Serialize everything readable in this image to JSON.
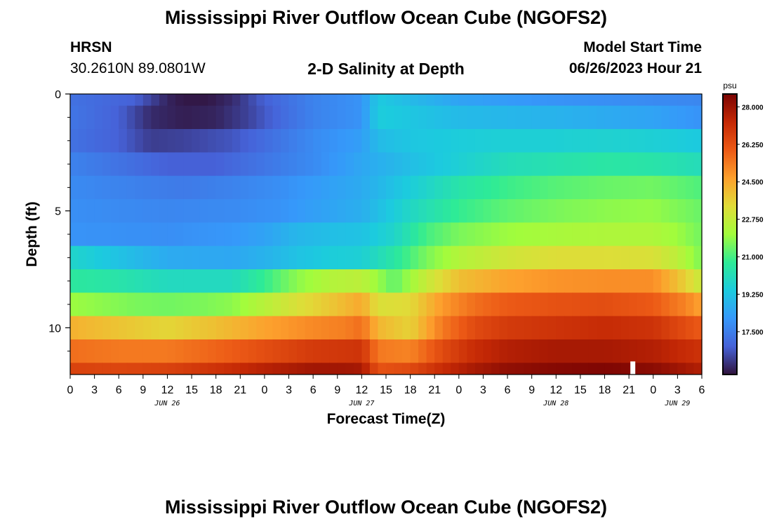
{
  "page": {
    "title": "Mississippi River Outflow Ocean Cube (NGOFS2)",
    "station": "HRSN",
    "coords": "30.2610N  89.0801W",
    "subtitle": "2-D Salinity at Depth",
    "model_start_label": "Model Start Time",
    "model_start_value": "06/26/2023 Hour 21",
    "footer_title": "Mississippi River Outflow Ocean Cube (NGOFS2)"
  },
  "chart_data": {
    "type": "heatmap",
    "title": "2-D Salinity at Depth",
    "xlabel": "Forecast Time(Z)",
    "ylabel": "Depth (ft)",
    "x_unit": "hours since Jun 26 00Z",
    "xlim": [
      0,
      78
    ],
    "ylim": [
      0,
      12
    ],
    "x_tick_values": [
      0,
      3,
      6,
      9,
      12,
      15,
      18,
      21,
      24,
      27,
      30,
      33,
      36,
      39,
      42,
      45,
      48,
      51,
      54,
      57,
      60,
      63,
      66,
      69,
      72,
      75,
      78
    ],
    "x_tick_labels": [
      "0",
      "3",
      "6",
      "9",
      "12",
      "15",
      "18",
      "21",
      "0",
      "3",
      "6",
      "9",
      "12",
      "15",
      "18",
      "21",
      "0",
      "3",
      "6",
      "9",
      "12",
      "15",
      "18",
      "21",
      "0",
      "3",
      "6"
    ],
    "day_labels": [
      {
        "text": "JUN 26",
        "x": 12
      },
      {
        "text": "JUN 27",
        "x": 36
      },
      {
        "text": "JUN 28",
        "x": 60
      },
      {
        "text": "JUN 29",
        "x": 75
      }
    ],
    "y_tick_values": [
      0,
      5,
      10
    ],
    "y_tick_labels": [
      "0",
      "5",
      "10"
    ],
    "y_minor_ticks": [
      1,
      2,
      3,
      4,
      6,
      7,
      8,
      9,
      11
    ],
    "current_time_marker_x": 69,
    "colorbar": {
      "unit": "psu",
      "min": 15.5,
      "max": 28.6,
      "ticks": [
        28.0,
        26.25,
        24.5,
        22.75,
        21.0,
        19.25,
        17.5
      ],
      "tick_labels": [
        "28.000",
        "26.250",
        "24.500",
        "22.750",
        "21.000",
        "19.250",
        "17.500"
      ]
    },
    "layers": [
      {
        "depth_top": 0,
        "depth_bottom": 0.5,
        "t": [
          0,
          8,
          12,
          14,
          17,
          20,
          24,
          30,
          36,
          38,
          42,
          48,
          60,
          72,
          78
        ],
        "v": [
          17.2,
          16.8,
          15.8,
          15.6,
          15.6,
          15.9,
          16.8,
          17.6,
          18.0,
          19.4,
          19.0,
          18.4,
          18.0,
          17.8,
          17.7
        ]
      },
      {
        "depth_top": 0.5,
        "depth_bottom": 1.5,
        "t": [
          0,
          6,
          10,
          14,
          18,
          22,
          26,
          30,
          36,
          38,
          42,
          48,
          60,
          72,
          78
        ],
        "v": [
          17.3,
          16.8,
          15.9,
          15.7,
          15.8,
          16.3,
          17.0,
          17.6,
          18.0,
          19.5,
          19.3,
          19.0,
          18.8,
          18.4,
          18.0
        ]
      },
      {
        "depth_top": 1.5,
        "depth_bottom": 2.5,
        "t": [
          0,
          6,
          10,
          14,
          20,
          26,
          30,
          36,
          38,
          42,
          48,
          54,
          60,
          66,
          72,
          78
        ],
        "v": [
          17.2,
          16.8,
          16.2,
          16.3,
          16.6,
          17.3,
          17.8,
          18.3,
          19.0,
          19.3,
          19.5,
          19.6,
          19.6,
          19.7,
          19.6,
          19.4
        ]
      },
      {
        "depth_top": 2.5,
        "depth_bottom": 3.5,
        "t": [
          0,
          8,
          12,
          18,
          24,
          30,
          36,
          42,
          48,
          54,
          60,
          66,
          72,
          78
        ],
        "v": [
          17.6,
          17.1,
          16.8,
          16.8,
          17.3,
          17.8,
          18.5,
          19.1,
          19.6,
          20.1,
          20.3,
          20.5,
          20.4,
          20.1
        ]
      },
      {
        "depth_top": 3.5,
        "depth_bottom": 4.5,
        "t": [
          0,
          10,
          14,
          20,
          26,
          30,
          36,
          42,
          48,
          54,
          60,
          66,
          72,
          78
        ],
        "v": [
          17.8,
          17.5,
          17.4,
          17.6,
          17.9,
          18.2,
          18.6,
          19.5,
          20.4,
          20.9,
          21.2,
          21.4,
          21.5,
          21.1
        ]
      },
      {
        "depth_top": 4.5,
        "depth_bottom": 5.5,
        "t": [
          0,
          12,
          20,
          26,
          30,
          36,
          42,
          48,
          54,
          60,
          66,
          72,
          78
        ],
        "v": [
          17.9,
          17.7,
          17.8,
          18.0,
          18.3,
          18.7,
          19.9,
          20.8,
          21.3,
          21.6,
          21.8,
          21.9,
          21.4
        ]
      },
      {
        "depth_top": 5.5,
        "depth_bottom": 6.5,
        "t": [
          0,
          12,
          20,
          24,
          28,
          32,
          36,
          40,
          44,
          48,
          54,
          60,
          66,
          72,
          75,
          78
        ],
        "v": [
          18.0,
          17.9,
          18.1,
          18.4,
          18.9,
          19.1,
          19.2,
          19.8,
          21.0,
          21.6,
          22.0,
          22.2,
          22.3,
          22.3,
          22.0,
          21.5
        ]
      },
      {
        "depth_top": 6.5,
        "depth_bottom": 7.5,
        "t": [
          0,
          12,
          20,
          24,
          28,
          32,
          36,
          40,
          44,
          48,
          54,
          60,
          66,
          72,
          75,
          78
        ],
        "v": [
          19.8,
          18.6,
          18.5,
          18.8,
          19.2,
          19.5,
          19.6,
          20.5,
          21.6,
          22.4,
          23.0,
          23.3,
          23.3,
          23.2,
          22.6,
          21.6
        ]
      },
      {
        "depth_top": 7.5,
        "depth_bottom": 8.5,
        "t": [
          0,
          6,
          12,
          20,
          24,
          28,
          32,
          36,
          40,
          44,
          48,
          54,
          60,
          66,
          72,
          75,
          78
        ],
        "v": [
          20.6,
          20.4,
          20.0,
          20.0,
          20.8,
          21.8,
          22.4,
          22.6,
          21.3,
          22.8,
          24.0,
          24.6,
          24.9,
          25.0,
          25.0,
          24.0,
          22.8
        ]
      },
      {
        "depth_top": 8.5,
        "depth_bottom": 9.5,
        "t": [
          0,
          8,
          12,
          16,
          20,
          24,
          28,
          32,
          36,
          38,
          42,
          46,
          50,
          54,
          60,
          66,
          72,
          76,
          78
        ],
        "v": [
          22.0,
          21.6,
          21.5,
          21.6,
          21.8,
          22.5,
          23.2,
          23.8,
          24.5,
          23.2,
          23.4,
          24.8,
          25.6,
          26.0,
          26.2,
          26.3,
          26.0,
          25.2,
          24.6
        ]
      },
      {
        "depth_top": 9.5,
        "depth_bottom": 10.5,
        "t": [
          0,
          6,
          12,
          18,
          24,
          30,
          34,
          36,
          38,
          42,
          46,
          50,
          54,
          60,
          66,
          72,
          78
        ],
        "v": [
          24.3,
          23.9,
          23.5,
          24.0,
          24.6,
          25.1,
          25.3,
          25.6,
          24.2,
          23.6,
          25.4,
          26.4,
          26.8,
          27.0,
          27.2,
          27.0,
          26.0
        ]
      },
      {
        "depth_top": 10.5,
        "depth_bottom": 11.5,
        "t": [
          0,
          6,
          12,
          18,
          24,
          30,
          34,
          36,
          38,
          42,
          46,
          50,
          54,
          60,
          66,
          72,
          78
        ],
        "v": [
          25.6,
          25.4,
          25.4,
          25.8,
          26.3,
          26.8,
          26.9,
          27.0,
          25.4,
          25.2,
          26.4,
          27.2,
          27.6,
          27.8,
          27.8,
          27.6,
          27.0
        ]
      },
      {
        "depth_top": 11.5,
        "depth_bottom": 12.0,
        "t": [
          0,
          6,
          12,
          18,
          24,
          30,
          34,
          36,
          38,
          42,
          46,
          50,
          54,
          60,
          66,
          72,
          78
        ],
        "v": [
          26.6,
          26.5,
          26.6,
          27.0,
          27.5,
          27.9,
          27.9,
          27.8,
          26.2,
          26.4,
          27.2,
          27.8,
          28.2,
          28.4,
          28.5,
          28.3,
          27.6
        ]
      }
    ]
  }
}
